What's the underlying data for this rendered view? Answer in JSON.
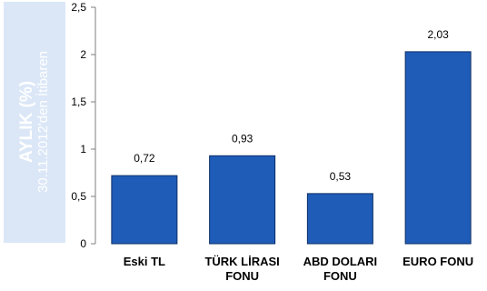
{
  "chart_data": {
    "type": "bar",
    "ylabel": "AYLIK (%)",
    "ylabel_sub": "30.11.2012'den İtibaren",
    "categories": [
      [
        "Eski TL"
      ],
      [
        "TÜRK LİRASI",
        "FONU"
      ],
      [
        "ABD DOLARI",
        "FONU"
      ],
      [
        "EURO FONU"
      ]
    ],
    "values": [
      0.72,
      0.93,
      0.53,
      2.03
    ],
    "value_labels": [
      "0,72",
      "0,93",
      "0,53",
      "2,03"
    ],
    "ylim": [
      0,
      2.5
    ],
    "yticks": [
      0,
      0.5,
      1,
      1.5,
      2,
      2.5
    ],
    "ytick_labels": [
      "0",
      "0,5",
      "1",
      "1,5",
      "2",
      "2,5"
    ],
    "grid": false,
    "legend": "none",
    "colors": {
      "bar_fill": "#1f5cb8",
      "bar_stroke": "#0d2f66",
      "axis": "#7f7f7f",
      "ylabel_bg": "#dbe7f7",
      "ylabel_text": "#ffffff"
    }
  }
}
